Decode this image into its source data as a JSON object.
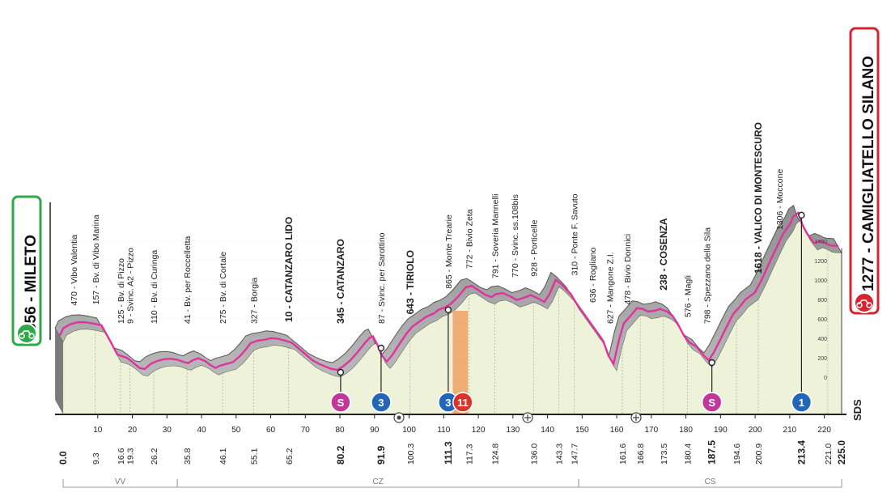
{
  "start": {
    "name": "MILETO",
    "altitude": "356"
  },
  "finish": {
    "name": "CAMIGLIATELLO SILANO",
    "altitude": "1277"
  },
  "logo": "SDS",
  "chart_data": {
    "type": "area",
    "x_domain": [
      0,
      225
    ],
    "y_domain": [
      0,
      1700
    ],
    "profile": [
      [
        0,
        356
      ],
      [
        1,
        430
      ],
      [
        3,
        470
      ],
      [
        5,
        490
      ],
      [
        7,
        492
      ],
      [
        9.3,
        480
      ],
      [
        12,
        460
      ],
      [
        14.5,
        300
      ],
      [
        16.6,
        157
      ],
      [
        18,
        140
      ],
      [
        19.3,
        125
      ],
      [
        21,
        80
      ],
      [
        23,
        20
      ],
      [
        24.5,
        9
      ],
      [
        26.2,
        60
      ],
      [
        28,
        90
      ],
      [
        30,
        110
      ],
      [
        32,
        115
      ],
      [
        34,
        105
      ],
      [
        35.8,
        80
      ],
      [
        37,
        70
      ],
      [
        38.5,
        100
      ],
      [
        40,
        120
      ],
      [
        42,
        90
      ],
      [
        43.5,
        50
      ],
      [
        45,
        20
      ],
      [
        46.1,
        41
      ],
      [
        48,
        60
      ],
      [
        50,
        80
      ],
      [
        52,
        140
      ],
      [
        53.5,
        200
      ],
      [
        55.1,
        275
      ],
      [
        57,
        300
      ],
      [
        59,
        310
      ],
      [
        61,
        327
      ],
      [
        63,
        320
      ],
      [
        65.2,
        300
      ],
      [
        67,
        280
      ],
      [
        69,
        220
      ],
      [
        71,
        160
      ],
      [
        73,
        100
      ],
      [
        75,
        60
      ],
      [
        77,
        30
      ],
      [
        78.5,
        10
      ],
      [
        80.2,
        0
      ],
      [
        82,
        40
      ],
      [
        84,
        100
      ],
      [
        86,
        180
      ],
      [
        88,
        270
      ],
      [
        89.5,
        330
      ],
      [
        90.5,
        345
      ],
      [
        91.9,
        250
      ],
      [
        93,
        150
      ],
      [
        94.5,
        87
      ],
      [
        96,
        150
      ],
      [
        98,
        260
      ],
      [
        100.3,
        380
      ],
      [
        102,
        450
      ],
      [
        104,
        500
      ],
      [
        106,
        550
      ],
      [
        108,
        580
      ],
      [
        109.5,
        620
      ],
      [
        111.3,
        643
      ],
      [
        113,
        680
      ],
      [
        115,
        750
      ],
      [
        117.3,
        850
      ],
      [
        119,
        865
      ],
      [
        121,
        820
      ],
      [
        123,
        772
      ],
      [
        124.8,
        750
      ],
      [
        126,
        780
      ],
      [
        128,
        791
      ],
      [
        130,
        760
      ],
      [
        132,
        720
      ],
      [
        134,
        740
      ],
      [
        136,
        770
      ],
      [
        138,
        740
      ],
      [
        140,
        700
      ],
      [
        141.5,
        780
      ],
      [
        143.3,
        928
      ],
      [
        145,
        880
      ],
      [
        147.7,
        780
      ],
      [
        149,
        700
      ],
      [
        151,
        600
      ],
      [
        153,
        500
      ],
      [
        155,
        400
      ],
      [
        157,
        300
      ],
      [
        158.5,
        150
      ],
      [
        160,
        60
      ],
      [
        161.6,
        310
      ],
      [
        163,
        480
      ],
      [
        165,
        560
      ],
      [
        166.8,
        636
      ],
      [
        168.5,
        627
      ],
      [
        170,
        600
      ],
      [
        172,
        610
      ],
      [
        173.5,
        627
      ],
      [
        175.5,
        600
      ],
      [
        177,
        560
      ],
      [
        178.5,
        478
      ],
      [
        180.4,
        350
      ],
      [
        182,
        280
      ],
      [
        184,
        238
      ],
      [
        186,
        150
      ],
      [
        187.5,
        100
      ],
      [
        189,
        180
      ],
      [
        191,
        320
      ],
      [
        192.5,
        430
      ],
      [
        194.6,
        576
      ],
      [
        196.5,
        650
      ],
      [
        198,
        720
      ],
      [
        200.9,
        798
      ],
      [
        203,
        940
      ],
      [
        205,
        1100
      ],
      [
        207,
        1250
      ],
      [
        209,
        1400
      ],
      [
        211,
        1500
      ],
      [
        212,
        1580
      ],
      [
        213.4,
        1618
      ],
      [
        214.5,
        1500
      ],
      [
        216,
        1400
      ],
      [
        218,
        1306
      ],
      [
        219.5,
        1330
      ],
      [
        221,
        1310
      ],
      [
        222,
        1290
      ],
      [
        223,
        1280
      ],
      [
        225,
        1277
      ]
    ],
    "y_ticks": [
      "0",
      "200",
      "400",
      "600",
      "800",
      "1000",
      "1200",
      "1400"
    ],
    "x_ticks": [
      "10",
      "20",
      "30",
      "40",
      "50",
      "60",
      "70",
      "80",
      "90",
      "100",
      "110",
      "120",
      "130",
      "140",
      "150",
      "160",
      "170",
      "180",
      "190",
      "200",
      "210",
      "220"
    ],
    "km_labels": [
      "0.0",
      "9.3",
      "16.6",
      "19.3",
      "26.2",
      "35.8",
      "46.1",
      "55.1",
      "65.2",
      "80.2",
      "91.9",
      "100.3",
      "111.3",
      "117.3",
      "124.8",
      "136.0",
      "143.3",
      "147.7",
      "161.6",
      "166.8",
      "173.5",
      "180.4",
      "187.5",
      "194.6",
      "200.9",
      "213.4",
      "221.0",
      "225.0"
    ],
    "km_bold": [
      "0.0",
      "80.2",
      "91.9",
      "111.3",
      "187.5",
      "213.4",
      "225.0"
    ],
    "waypoints": [
      {
        "km": 3,
        "text": "470 - Vibo Valentia",
        "bold": false
      },
      {
        "km": 9.3,
        "text": "157 - Bv. di Vibo Marina",
        "bold": false
      },
      {
        "km": 16.6,
        "text": "125 - Bv. di Pizzo",
        "bold": false
      },
      {
        "km": 19.3,
        "text": "9 - Svinc. A2 - Pizzo",
        "bold": false
      },
      {
        "km": 26.2,
        "text": "110 - Bv. di Curinga",
        "bold": false
      },
      {
        "km": 35.8,
        "text": "41 - Bv. per Roccelletta",
        "bold": false
      },
      {
        "km": 46.1,
        "text": "275 - Bv. di Cortale",
        "bold": false
      },
      {
        "km": 55.1,
        "text": "327 - Borgia",
        "bold": false
      },
      {
        "km": 65.2,
        "text": "10 - CATANZARO LIDO",
        "bold": true
      },
      {
        "km": 80.2,
        "text": "345 - CATANZARO",
        "bold": true
      },
      {
        "km": 91.9,
        "text": "87 - Svinc. per Sarottino",
        "bold": false
      },
      {
        "km": 100.3,
        "text": "643 - TIRIOLO",
        "bold": true
      },
      {
        "km": 111.3,
        "text": "865 - Monte Trearie",
        "bold": false
      },
      {
        "km": 117.3,
        "text": "772 - Bivio Zeta",
        "bold": false
      },
      {
        "km": 124.8,
        "text": "791 - Soveria Mannelli",
        "bold": false
      },
      {
        "km": 130.5,
        "text": "770 - Svinc. ss.108bis",
        "bold": false
      },
      {
        "km": 136,
        "text": "928 - Porticelle",
        "bold": false
      },
      {
        "km": 147.7,
        "text": "310 - Ponte F. Savuto",
        "bold": false
      },
      {
        "km": 153,
        "text": "636 - Rogliano",
        "bold": false
      },
      {
        "km": 158,
        "text": "627 - Mangone Z.I.",
        "bold": false
      },
      {
        "km": 163,
        "text": "478 - Bivio Donnici",
        "bold": false
      },
      {
        "km": 173.5,
        "text": "238 - COSENZA",
        "bold": true
      },
      {
        "km": 180.4,
        "text": "576 - Magli",
        "bold": false
      },
      {
        "km": 186,
        "text": "798 - Spezzano della Sila",
        "bold": false
      },
      {
        "km": 200.9,
        "text": "1618 - VALICO DI MONTESCURO",
        "bold": true
      },
      {
        "km": 207,
        "text": "1306 - Moccone",
        "bold": false
      }
    ],
    "markers": [
      {
        "km": 80.2,
        "type": "sprint",
        "label": "S",
        "color": "#c0399a"
      },
      {
        "km": 91.9,
        "type": "kom",
        "label": "3",
        "color": "#2266b8"
      },
      {
        "km": 111.3,
        "type": "kom",
        "label": "3",
        "color": "#2266b8"
      },
      {
        "km": 115.5,
        "type": "bonus",
        "label": "11",
        "color": "#d9332a"
      },
      {
        "km": 187.5,
        "type": "sprint",
        "label": "S",
        "color": "#c0399a"
      },
      {
        "km": 213.4,
        "type": "kom",
        "label": "1",
        "color": "#2266b8"
      }
    ],
    "feed_zone": [
      112.6,
      117
    ],
    "regions": [
      {
        "name": "VV",
        "from": 0,
        "to": 33
      },
      {
        "name": "CZ",
        "from": 33,
        "to": 149
      },
      {
        "name": "CS",
        "from": 149,
        "to": 225
      }
    ]
  }
}
